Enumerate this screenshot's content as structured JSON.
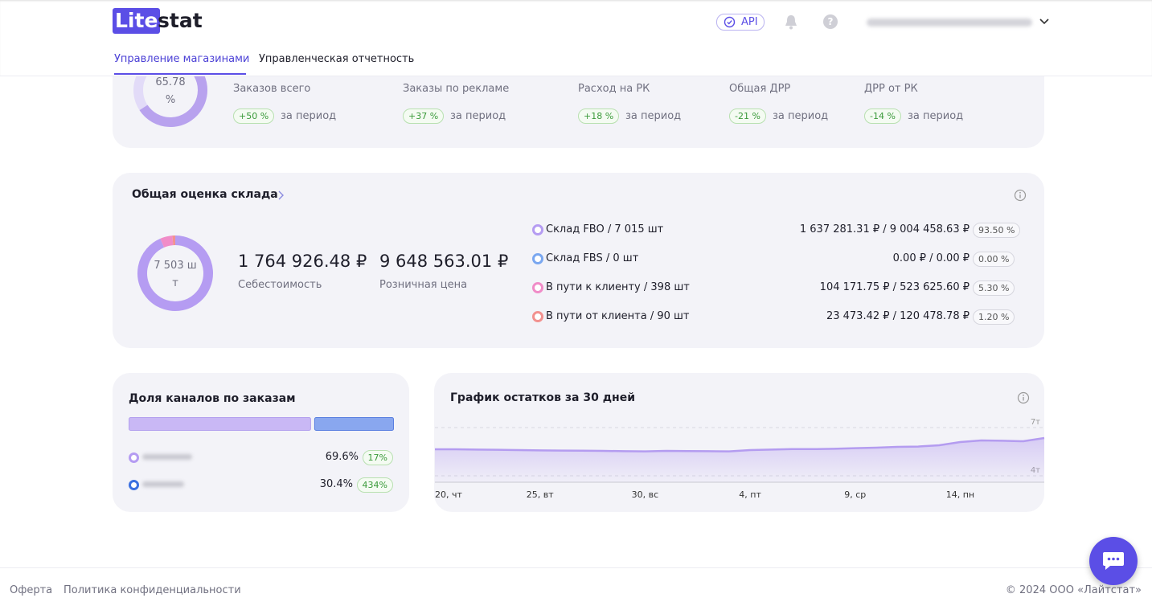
{
  "header": {
    "logo_lite": "Lite",
    "logo_stat": "stat",
    "api": "API"
  },
  "tabs": [
    "Управление магазинами",
    "Управленческая отчетность"
  ],
  "summary": {
    "donut_value": 65.78,
    "donut_unit": "%",
    "metrics": [
      {
        "label": "Заказов всего",
        "change": "+50 %",
        "period": "за период"
      },
      {
        "label": "Заказы по рекламе",
        "change": "+37 %",
        "period": "за период"
      },
      {
        "label": "Расход на РК",
        "change": "+18 %",
        "period": "за период"
      },
      {
        "label": "Общая ДРР",
        "change": "-21 %",
        "period": "за период"
      },
      {
        "label": "ДРР от РК",
        "change": "-14 %",
        "period": "за период"
      }
    ]
  },
  "warehouse": {
    "title": "Общая оценка склада",
    "donut_label": "7 503 шт",
    "cost": "1 764 926.48 ₽",
    "cost_label": "Себестоимость",
    "retail": "9 648 563.01 ₽",
    "retail_label": "Розничная цена",
    "rows": [
      {
        "label": "Склад FBO / 7 015 шт",
        "amount": "1 637 281.31 ₽ / 9 004 458.63 ₽",
        "share": 93.5,
        "share_label": "93.50 %",
        "color": "#b59cf2"
      },
      {
        "label": "Склад FBS / 0 шт",
        "amount": "0.00 ₽ / 0.00 ₽",
        "share": 0,
        "share_label": "0.00 %",
        "color": "#7aa7f0"
      },
      {
        "label": "В пути к клиенту / 398 шт",
        "amount": "104 171.75 ₽ / 523 625.60 ₽",
        "share": 5.3,
        "share_label": "5.30 %",
        "color": "#f08cc8"
      },
      {
        "label": "В пути от клиента / 90 шт",
        "amount": "23 473.42 ₽ / 120 478.78 ₽",
        "share": 1.2,
        "share_label": "1.20 %",
        "color": "#f2918f"
      }
    ]
  },
  "channels": {
    "title": "Доля каналов по заказам",
    "rows": [
      {
        "share": 69.6,
        "share_label": "69.6%",
        "growth": "17%",
        "color": "#c9b8f5"
      },
      {
        "share": 30.4,
        "share_label": "30.4%",
        "growth": "434%",
        "color": "#89a7ef"
      }
    ]
  },
  "stock_chart": {
    "type": "line",
    "title": "График остатков за 30 дней",
    "categories": [
      "20, чт",
      null,
      null,
      null,
      null,
      "25, вт",
      null,
      null,
      null,
      null,
      "30, вс",
      null,
      null,
      null,
      null,
      "4, пт",
      null,
      null,
      null,
      null,
      "9, ср",
      null,
      null,
      null,
      null,
      "14, пн",
      null,
      null,
      null,
      null
    ],
    "values": [
      5.65,
      5.65,
      5.63,
      5.62,
      5.6,
      5.58,
      5.57,
      5.56,
      5.55,
      5.53,
      5.52,
      5.55,
      5.54,
      5.53,
      5.52,
      5.6,
      5.63,
      5.66,
      5.66,
      5.68,
      5.72,
      5.75,
      5.8,
      5.82,
      5.9,
      6.1,
      6.2,
      6.18,
      6.15,
      6.35
    ],
    "ylim": [
      3.6,
      7.6
    ],
    "yticks": [
      {
        "value": 4,
        "label": "4т"
      },
      {
        "value": 7,
        "label": "7т"
      }
    ],
    "color": "#b49cf0"
  },
  "footer": {
    "links": [
      "Оферта",
      "Политика конфиденциальности"
    ],
    "copyright": "© 2024 ООО «Лайтстат»"
  }
}
